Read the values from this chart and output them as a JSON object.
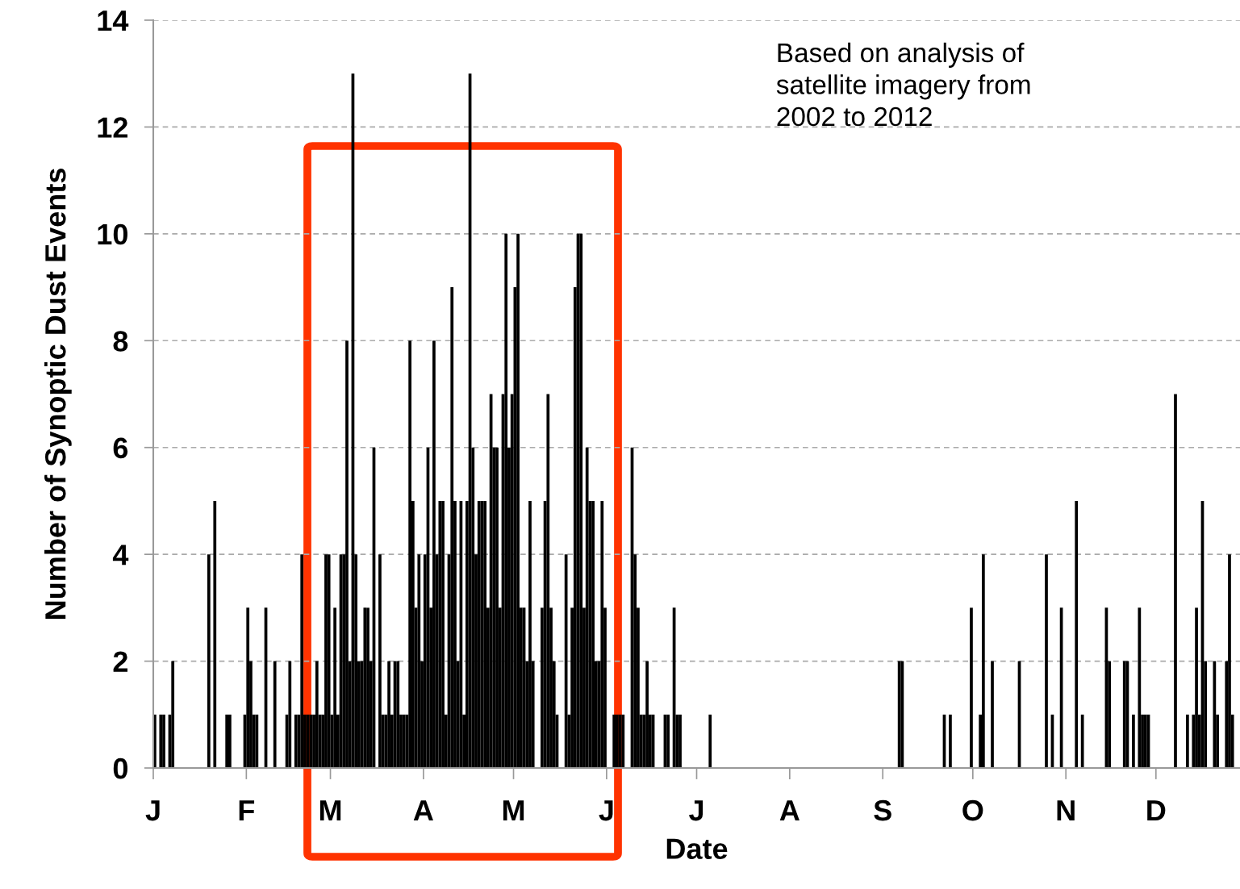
{
  "chart_data": {
    "type": "bar",
    "xlabel": "Date",
    "ylabel": "Number of Synoptic Dust Events",
    "annotations": [
      "Based on analysis of\nsatellite imagery from\n2002 to 2012"
    ],
    "color": "#000000",
    "categories": [
      "J",
      null,
      null,
      null,
      null,
      null,
      null,
      null,
      null,
      null,
      null,
      null,
      null,
      null,
      null,
      null,
      null,
      null,
      null,
      null,
      null,
      null,
      null,
      null,
      null,
      null,
      null,
      null,
      null,
      null,
      null,
      "F",
      null,
      null,
      null,
      null,
      null,
      null,
      null,
      null,
      null,
      null,
      null,
      null,
      null,
      null,
      null,
      null,
      null,
      null,
      null,
      null,
      null,
      null,
      null,
      null,
      null,
      null,
      null,
      "M",
      null,
      null,
      null,
      null,
      null,
      null,
      null,
      null,
      null,
      null,
      null,
      null,
      null,
      null,
      null,
      null,
      null,
      null,
      null,
      null,
      null,
      null,
      null,
      null,
      null,
      null,
      null,
      null,
      null,
      null,
      "A",
      null,
      null,
      null,
      null,
      null,
      null,
      null,
      null,
      null,
      null,
      null,
      null,
      null,
      null,
      null,
      null,
      null,
      null,
      null,
      null,
      null,
      null,
      null,
      null,
      null,
      null,
      null,
      null,
      null,
      "M",
      null,
      null,
      null,
      null,
      null,
      null,
      null,
      null,
      null,
      null,
      null,
      null,
      null,
      null,
      null,
      null,
      null,
      null,
      null,
      null,
      null,
      null,
      null,
      null,
      null,
      null,
      null,
      null,
      null,
      null,
      "J",
      null,
      null,
      null,
      null,
      null,
      null,
      null,
      null,
      null,
      null,
      null,
      null,
      null,
      null,
      null,
      null,
      null,
      null,
      null,
      null,
      null,
      null,
      null,
      null,
      null,
      null,
      null,
      null,
      null,
      "J",
      null,
      null,
      null,
      null,
      null,
      null,
      null,
      null,
      null,
      null,
      null,
      null,
      null,
      null,
      null,
      null,
      null,
      null,
      null,
      null,
      null,
      null,
      null,
      null,
      null,
      null,
      null,
      null,
      null,
      null,
      "A",
      null,
      null,
      null,
      null,
      null,
      null,
      null,
      null,
      null,
      null,
      null,
      null,
      null,
      null,
      null,
      null,
      null,
      null,
      null,
      null,
      null,
      null,
      null,
      null,
      null,
      null,
      null,
      null,
      null,
      null,
      "S",
      null,
      null,
      null,
      null,
      null,
      null,
      null,
      null,
      null,
      null,
      null,
      null,
      null,
      null,
      null,
      null,
      null,
      null,
      null,
      null,
      null,
      null,
      null,
      null,
      null,
      null,
      null,
      null,
      null,
      "O",
      null,
      null,
      null,
      null,
      null,
      null,
      null,
      null,
      null,
      null,
      null,
      null,
      null,
      null,
      null,
      null,
      null,
      null,
      null,
      null,
      null,
      null,
      null,
      null,
      null,
      null,
      null,
      null,
      null,
      null,
      "N",
      null,
      null,
      null,
      null,
      null,
      null,
      null,
      null,
      null,
      null,
      null,
      null,
      null,
      null,
      null,
      null,
      null,
      null,
      null,
      null,
      null,
      null,
      null,
      null,
      null,
      null,
      null,
      null,
      null,
      "D",
      null,
      null,
      null,
      null,
      null,
      null,
      null,
      null,
      null,
      null,
      null,
      null,
      null,
      null,
      null,
      null,
      null,
      null,
      null,
      null,
      null,
      null,
      null,
      null,
      null,
      null,
      null
    ],
    "values": [
      1,
      0,
      1,
      1,
      0,
      1,
      2,
      0,
      0,
      0,
      0,
      0,
      0,
      0,
      0,
      0,
      0,
      0,
      4,
      0,
      5,
      0,
      0,
      0,
      1,
      1,
      0,
      0,
      0,
      0,
      1,
      3,
      2,
      1,
      1,
      0,
      0,
      3,
      0,
      0,
      2,
      0,
      0,
      0,
      1,
      2,
      0,
      1,
      1,
      4,
      1,
      1,
      1,
      1,
      2,
      1,
      1,
      4,
      4,
      1,
      3,
      1,
      4,
      4,
      8,
      2,
      13,
      4,
      2,
      2,
      3,
      3,
      2,
      6,
      0,
      4,
      1,
      1,
      2,
      1,
      2,
      2,
      1,
      1,
      1,
      8,
      5,
      3,
      4,
      2,
      4,
      6,
      3,
      8,
      4,
      5,
      5,
      1,
      4,
      9,
      5,
      2,
      5,
      1,
      5,
      13,
      6,
      4,
      5,
      5,
      5,
      3,
      7,
      6,
      6,
      3,
      7,
      10,
      6,
      7,
      9,
      10,
      3,
      3,
      2,
      5,
      2,
      0,
      0,
      3,
      5,
      7,
      3,
      2,
      1,
      0,
      0,
      4,
      1,
      3,
      9,
      10,
      10,
      3,
      6,
      5,
      5,
      2,
      2,
      5,
      3,
      0,
      0,
      1,
      1,
      1,
      1,
      0,
      0,
      6,
      4,
      3,
      1,
      1,
      2,
      1,
      1,
      0,
      0,
      0,
      1,
      1,
      0,
      3,
      1,
      1,
      0,
      0,
      0,
      0,
      0,
      0,
      0,
      0,
      0,
      1,
      0,
      0,
      0,
      0,
      0,
      0,
      0,
      0,
      0,
      0,
      0,
      0,
      0,
      0,
      0,
      0,
      0,
      0,
      0,
      0,
      0,
      0,
      0,
      0,
      0,
      0,
      0,
      0,
      0,
      0,
      0,
      0,
      0,
      0,
      0,
      0,
      0,
      0,
      0,
      0,
      0,
      0,
      0,
      0,
      0,
      0,
      0,
      0,
      0,
      0,
      0,
      0,
      0,
      0,
      0,
      0,
      0,
      0,
      0,
      0,
      0,
      0,
      2,
      2,
      0,
      0,
      0,
      0,
      0,
      0,
      0,
      0,
      0,
      0,
      0,
      0,
      0,
      1,
      0,
      1,
      0,
      0,
      0,
      0,
      0,
      0,
      3,
      0,
      0,
      1,
      4,
      0,
      0,
      2,
      0,
      0,
      0,
      0,
      0,
      0,
      0,
      0,
      2,
      0,
      0,
      0,
      0,
      0,
      0,
      0,
      0,
      4,
      0,
      1,
      0,
      0,
      3,
      0,
      0,
      0,
      0,
      5,
      0,
      1,
      0,
      0,
      0,
      0,
      0,
      0,
      0,
      3,
      2,
      0,
      0,
      0,
      0,
      2,
      2,
      0,
      1,
      0,
      3,
      1,
      1,
      1,
      0,
      0,
      0,
      0,
      0,
      0,
      0,
      0,
      7,
      0,
      0,
      0,
      1,
      0,
      1,
      3,
      1,
      5,
      2,
      0,
      0,
      2,
      1,
      0,
      0,
      2,
      4,
      1,
      0,
      0
    ],
    "ylim": [
      0,
      14
    ],
    "yticks": [
      0,
      2,
      4,
      6,
      8,
      10,
      12,
      14
    ],
    "grid": "y"
  }
}
